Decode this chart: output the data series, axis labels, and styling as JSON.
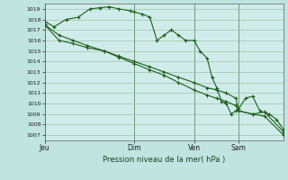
{
  "background_color": "#c0e4e0",
  "plot_bg_color": "#d0ecea",
  "grid_color": "#90b898",
  "line_color": "#1a5e1a",
  "marker_color": "#1a5e1a",
  "title": "Pression niveau de la mer( hPa )",
  "ylim": [
    1006.5,
    1019.5
  ],
  "yticks": [
    1007,
    1008,
    1009,
    1010,
    1011,
    1012,
    1013,
    1014,
    1015,
    1016,
    1017,
    1018,
    1019
  ],
  "xtick_labels": [
    "Jeu",
    "Dim",
    "Ven",
    "Sam"
  ],
  "vline_positions": [
    0.0,
    0.375,
    0.625,
    0.812
  ],
  "series1_x": [
    0.0,
    0.04,
    0.09,
    0.14,
    0.19,
    0.23,
    0.27,
    0.31,
    0.36,
    0.375,
    0.41,
    0.44,
    0.47,
    0.5,
    0.53,
    0.56,
    0.59,
    0.625,
    0.65,
    0.68,
    0.7,
    0.72,
    0.74,
    0.76,
    0.78,
    0.8,
    0.812,
    0.84,
    0.87,
    0.9,
    0.94,
    0.97,
    1.0
  ],
  "series1_y": [
    1017.8,
    1017.3,
    1018.0,
    1018.2,
    1019.0,
    1019.1,
    1019.2,
    1019.0,
    1018.8,
    1018.7,
    1018.5,
    1018.2,
    1016.0,
    1016.5,
    1017.0,
    1016.5,
    1016.0,
    1016.0,
    1015.0,
    1014.3,
    1012.5,
    1011.5,
    1010.2,
    1010.0,
    1009.0,
    1009.3,
    1009.5,
    1010.5,
    1010.7,
    1009.3,
    1009.0,
    1008.5,
    1007.5
  ],
  "series2_x": [
    0.0,
    0.06,
    0.12,
    0.18,
    0.25,
    0.31,
    0.375,
    0.44,
    0.5,
    0.56,
    0.625,
    0.68,
    0.72,
    0.76,
    0.8,
    0.812,
    0.87,
    0.92,
    1.0
  ],
  "series2_y": [
    1017.5,
    1016.5,
    1016.0,
    1015.5,
    1015.0,
    1014.5,
    1014.0,
    1013.5,
    1013.0,
    1012.5,
    1012.0,
    1011.5,
    1011.3,
    1011.0,
    1010.5,
    1009.3,
    1009.0,
    1009.2,
    1007.3
  ],
  "series3_x": [
    0.0,
    0.06,
    0.12,
    0.18,
    0.25,
    0.31,
    0.375,
    0.44,
    0.5,
    0.56,
    0.625,
    0.68,
    0.72,
    0.76,
    0.8,
    0.812,
    0.87,
    0.92,
    1.0
  ],
  "series3_y": [
    1017.5,
    1016.0,
    1015.7,
    1015.3,
    1015.0,
    1014.4,
    1013.8,
    1013.2,
    1012.7,
    1012.0,
    1011.3,
    1010.8,
    1010.5,
    1010.2,
    1009.8,
    1009.3,
    1009.0,
    1008.8,
    1007.0
  ]
}
